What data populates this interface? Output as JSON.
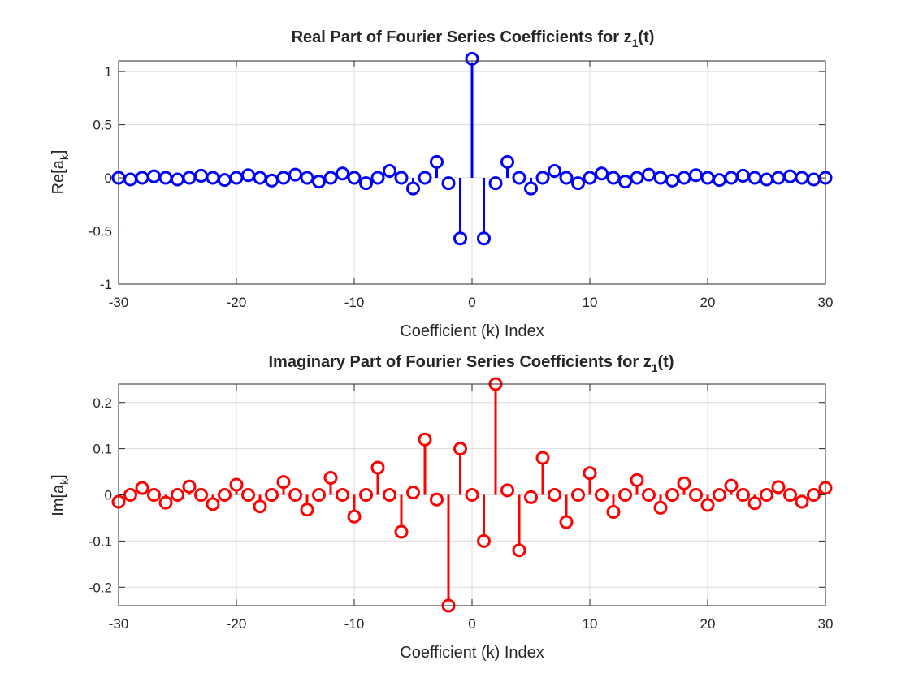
{
  "chart_data": [
    {
      "type": "stem",
      "title": "Real Part of Fourier Series Coefficients for z",
      "title_subscript": "1",
      "title_suffix": "(t)",
      "xlabel": "Coefficient (k) Index",
      "ylabel": "Re[a",
      "ylabel_subscript": "k",
      "ylabel_suffix": "]",
      "xlim": [
        -30,
        30
      ],
      "ylim": [
        -1,
        1.1
      ],
      "xticks": [
        -30,
        -20,
        -10,
        0,
        10,
        20,
        30
      ],
      "xtick_labels": [
        "-30",
        "-20",
        "-10",
        "0",
        "10",
        "20",
        "30"
      ],
      "yticks": [
        -1,
        -0.5,
        0,
        0.5,
        1
      ],
      "ytick_labels": [
        "-1",
        "-0.5",
        "0",
        "0.5",
        "1"
      ],
      "grid": true,
      "color": "#0000ff",
      "x": [
        -30,
        -29,
        -28,
        -27,
        -26,
        -25,
        -24,
        -23,
        -22,
        -21,
        -20,
        -19,
        -18,
        -17,
        -16,
        -15,
        -14,
        -13,
        -12,
        -11,
        -10,
        -9,
        -8,
        -7,
        -6,
        -5,
        -4,
        -3,
        -2,
        -1,
        0,
        1,
        2,
        3,
        4,
        5,
        6,
        7,
        8,
        9,
        10,
        11,
        12,
        13,
        14,
        15,
        16,
        17,
        18,
        19,
        20,
        21,
        22,
        23,
        24,
        25,
        26,
        27,
        28,
        29,
        30
      ],
      "values": [
        0,
        -0.015,
        0,
        0.015,
        0,
        -0.015,
        0,
        0.02,
        0,
        -0.02,
        0,
        0.025,
        0,
        -0.025,
        0,
        0.03,
        0,
        -0.035,
        0,
        0.04,
        0,
        -0.05,
        0,
        0.065,
        0,
        -0.1,
        0,
        0.15,
        -0.05,
        -0.57,
        1.12,
        -0.57,
        -0.05,
        0.15,
        0,
        -0.1,
        0,
        0.065,
        0,
        -0.05,
        0,
        0.04,
        0,
        -0.035,
        0,
        0.03,
        0,
        -0.025,
        0,
        0.025,
        0,
        -0.02,
        0,
        0.02,
        0,
        -0.015,
        0,
        0.015,
        0,
        -0.015,
        0
      ]
    },
    {
      "type": "stem",
      "title": "Imaginary Part of Fourier Series Coefficients for z",
      "title_subscript": "1",
      "title_suffix": "(t)",
      "xlabel": "Coefficient (k) Index",
      "ylabel": "Im[a",
      "ylabel_subscript": "k",
      "ylabel_suffix": "]",
      "xlim": [
        -30,
        30
      ],
      "ylim": [
        -0.24,
        0.24
      ],
      "xticks": [
        -30,
        -20,
        -10,
        0,
        10,
        20,
        30
      ],
      "xtick_labels": [
        "-30",
        "-20",
        "-10",
        "0",
        "10",
        "20",
        "30"
      ],
      "yticks": [
        -0.2,
        -0.1,
        0,
        0.1,
        0.2
      ],
      "ytick_labels": [
        "-0.2",
        "-0.1",
        "0",
        "0.1",
        "0.2"
      ],
      "grid": true,
      "color": "#ff0000",
      "x": [
        -30,
        -29,
        -28,
        -27,
        -26,
        -25,
        -24,
        -23,
        -22,
        -21,
        -20,
        -19,
        -18,
        -17,
        -16,
        -15,
        -14,
        -13,
        -12,
        -11,
        -10,
        -9,
        -8,
        -7,
        -6,
        -5,
        -4,
        -3,
        -2,
        -1,
        0,
        1,
        2,
        3,
        4,
        5,
        6,
        7,
        8,
        9,
        10,
        11,
        12,
        13,
        14,
        15,
        16,
        17,
        18,
        19,
        20,
        21,
        22,
        23,
        24,
        25,
        26,
        27,
        28,
        29,
        30
      ],
      "values": [
        -0.015,
        0,
        0.015,
        0,
        -0.017,
        0,
        0.018,
        0,
        -0.02,
        0,
        0.022,
        0,
        -0.025,
        0,
        0.028,
        0,
        -0.032,
        0,
        0.037,
        0,
        -0.047,
        0,
        0.059,
        0,
        -0.08,
        0.005,
        0.12,
        -0.01,
        -0.24,
        0.1,
        0,
        -0.1,
        0.24,
        0.01,
        -0.12,
        -0.005,
        0.08,
        0,
        -0.059,
        0,
        0.047,
        0,
        -0.037,
        0,
        0.032,
        0,
        -0.028,
        0,
        0.025,
        0,
        -0.022,
        0,
        0.02,
        0,
        -0.018,
        0,
        0.017,
        0,
        -0.015,
        0,
        0.015
      ]
    }
  ]
}
